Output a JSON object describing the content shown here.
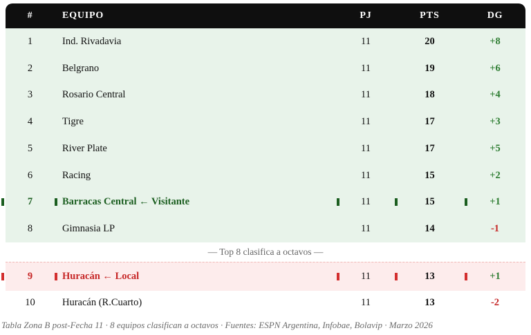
{
  "chart_data": {
    "type": "table",
    "columns": [
      "#",
      "EQUIPO",
      "PJ",
      "PTS",
      "DG"
    ],
    "rows": [
      {
        "rank": "1",
        "team": "Ind. Rivadavia",
        "pj": "11",
        "pts": "20",
        "dg": "+8",
        "highlight": "none",
        "row_bg": "green"
      },
      {
        "rank": "2",
        "team": "Belgrano",
        "pj": "11",
        "pts": "19",
        "dg": "+6",
        "highlight": "none",
        "row_bg": "green"
      },
      {
        "rank": "3",
        "team": "Rosario Central",
        "pj": "11",
        "pts": "18",
        "dg": "+4",
        "highlight": "none",
        "row_bg": "green"
      },
      {
        "rank": "4",
        "team": "Tigre",
        "pj": "11",
        "pts": "17",
        "dg": "+3",
        "highlight": "none",
        "row_bg": "green"
      },
      {
        "rank": "5",
        "team": "River Plate",
        "pj": "11",
        "pts": "17",
        "dg": "+5",
        "highlight": "none",
        "row_bg": "green"
      },
      {
        "rank": "6",
        "team": "Racing",
        "pj": "11",
        "pts": "15",
        "dg": "+2",
        "highlight": "none",
        "row_bg": "green"
      },
      {
        "rank": "7",
        "team": "Barracas Central ← Visitante",
        "pj": "11",
        "pts": "15",
        "dg": "+1",
        "highlight": "green",
        "row_bg": "green"
      },
      {
        "rank": "8",
        "team": "Gimnasia LP",
        "pj": "11",
        "pts": "14",
        "dg": "-1",
        "highlight": "none",
        "row_bg": "green"
      },
      {
        "rank": "9",
        "team": "Huracán ← Local",
        "pj": "11",
        "pts": "13",
        "dg": "+1",
        "highlight": "red",
        "row_bg": "pink"
      },
      {
        "rank": "10",
        "team": "Huracán (R.Cuarto)",
        "pj": "11",
        "pts": "13",
        "dg": "-2",
        "highlight": "none",
        "row_bg": "white"
      }
    ],
    "separator": {
      "label": "— Top 8 clasifica a octavos —",
      "after_rank": "8"
    },
    "caption": "Tabla Zona B post-Fecha 11 · 8 equipos clasifican a octavos · Fuentes: ESPN Argentina, Infobae, Bolavip · Marzo 2026"
  },
  "colors": {
    "header_bg": "#0f0f0f",
    "header_text": "#ffffff",
    "qualify_row_bg": "#e8f3ea",
    "highlight_green": "#1b5e20",
    "highlight_red": "#c62626",
    "red_row_bg": "#fdecec",
    "dg_positive": "#2e7d32",
    "dg_negative": "#c62828",
    "separator_text": "#666666",
    "caption_text": "#6b6b6b"
  }
}
